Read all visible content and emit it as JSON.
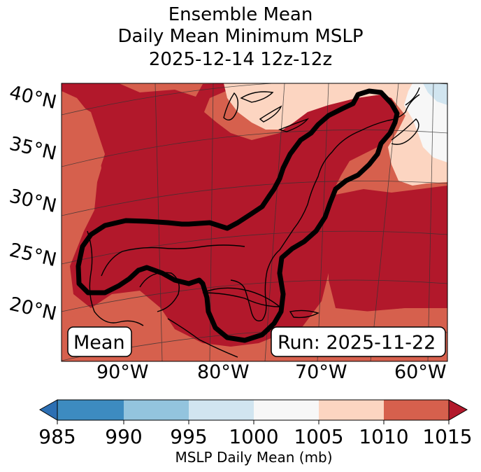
{
  "title": {
    "line1": "Ensemble Mean",
    "line2": "Daily Mean Minimum MSLP",
    "line3": "2025-12-14 12z-12z"
  },
  "map": {
    "lat_labels": [
      "40°N",
      "35°N",
      "30°N",
      "25°N",
      "20°N"
    ],
    "lon_labels": [
      "90°W",
      "80°W",
      "70°W",
      "60°W"
    ],
    "left_box": "Mean",
    "right_box": "Run: 2025-11-22",
    "colors": {
      "c985": "#2c6fb3",
      "c990_995": "#3d8bc0",
      "c995_1000": "#93c4de",
      "c1000_1005": "#d1e5f0",
      "c1005_1010": "#f7f7f7",
      "c1010_1015": "#fcd5c1",
      "c1015": "#d6604d",
      "over": "#b2182b"
    }
  },
  "colorbar": {
    "ticks": [
      "985",
      "990",
      "995",
      "1000",
      "1005",
      "1010",
      "1015"
    ],
    "label": "MSLP Daily Mean (mb)",
    "bins": [
      "#3d8bc0",
      "#93c4de",
      "#d1e5f0",
      "#f7f7f7",
      "#fcd5c1",
      "#d6604d"
    ],
    "under_color": "#2c6fb3",
    "over_color": "#b2182b"
  }
}
